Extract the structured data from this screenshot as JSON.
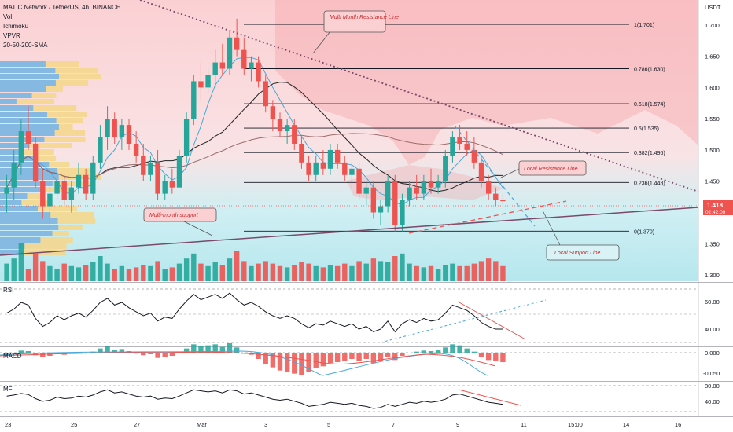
{
  "header": {
    "title": "MATIC Network / TetherUS, 4h, BINANCE",
    "indicators": [
      "Vol",
      "Ichimoku",
      "VPVR",
      "20-50-200-SMA"
    ]
  },
  "currency_label": "USDT",
  "price_axis": {
    "ticks": [
      "1.700",
      "1.650",
      "1.600",
      "1.550",
      "1.500",
      "1.450",
      "1.400",
      "1.350",
      "1.300"
    ]
  },
  "last_price": {
    "value": "1.418",
    "countdown": "02:42:09"
  },
  "fib_levels": [
    {
      "label": "1(1.701)",
      "price": 1.701
    },
    {
      "label": "0.786(1.630)",
      "price": 1.63
    },
    {
      "label": "0.618(1.574)",
      "price": 1.574
    },
    {
      "label": "0.5(1.535)",
      "price": 1.535
    },
    {
      "label": "0.382(1.496)",
      "price": 1.496
    },
    {
      "label": "0.236(1.448)",
      "price": 1.448
    },
    {
      "label": "0(1.370)",
      "price": 1.37
    }
  ],
  "annotations": {
    "multi_month_resistance": "Multi Month Resistance Line",
    "local_resistance": "Local Resistance Line",
    "multi_month_support": "Multi-month support",
    "local_support": "Local Support Line"
  },
  "panes": {
    "rsi": {
      "label": "RSI",
      "ticks": [
        "60.00",
        "40.00"
      ]
    },
    "macd": {
      "label": "MACD",
      "ticks": [
        "0.000",
        "-0.050"
      ]
    },
    "mfi": {
      "label": "MFI",
      "ticks": [
        "80.00",
        "40.00"
      ]
    }
  },
  "time_axis": {
    "ticks": [
      "23",
      "25",
      "27",
      "Mar",
      "3",
      "5",
      "7",
      "9",
      "11",
      "15:00",
      "14",
      "16"
    ]
  },
  "colors": {
    "up": "#26a69a",
    "down": "#ef5350",
    "resistance_cloud": "#f7a9ae",
    "support_bg": "#b3e5ec",
    "price_badge": "#ef5350"
  },
  "chart_data": {
    "type": "candlestick",
    "symbol": "MATIC Network / TetherUS",
    "interval": "4h",
    "ylim": [
      1.29,
      1.74
    ],
    "last_price": 1.418,
    "candles": [
      {
        "o": 1.43,
        "h": 1.46,
        "l": 1.4,
        "c": 1.44
      },
      {
        "o": 1.44,
        "h": 1.5,
        "l": 1.42,
        "c": 1.48
      },
      {
        "o": 1.48,
        "h": 1.55,
        "l": 1.46,
        "c": 1.53
      },
      {
        "o": 1.53,
        "h": 1.57,
        "l": 1.5,
        "c": 1.51
      },
      {
        "o": 1.51,
        "h": 1.52,
        "l": 1.44,
        "c": 1.45
      },
      {
        "o": 1.45,
        "h": 1.47,
        "l": 1.39,
        "c": 1.41
      },
      {
        "o": 1.41,
        "h": 1.45,
        "l": 1.38,
        "c": 1.43
      },
      {
        "o": 1.43,
        "h": 1.47,
        "l": 1.42,
        "c": 1.45
      },
      {
        "o": 1.45,
        "h": 1.46,
        "l": 1.41,
        "c": 1.42
      },
      {
        "o": 1.42,
        "h": 1.45,
        "l": 1.4,
        "c": 1.44
      },
      {
        "o": 1.44,
        "h": 1.48,
        "l": 1.43,
        "c": 1.46
      },
      {
        "o": 1.46,
        "h": 1.47,
        "l": 1.42,
        "c": 1.43
      },
      {
        "o": 1.43,
        "h": 1.49,
        "l": 1.42,
        "c": 1.48
      },
      {
        "o": 1.48,
        "h": 1.54,
        "l": 1.47,
        "c": 1.52
      },
      {
        "o": 1.52,
        "h": 1.57,
        "l": 1.5,
        "c": 1.55
      },
      {
        "o": 1.55,
        "h": 1.56,
        "l": 1.51,
        "c": 1.52
      },
      {
        "o": 1.52,
        "h": 1.55,
        "l": 1.5,
        "c": 1.54
      },
      {
        "o": 1.54,
        "h": 1.55,
        "l": 1.5,
        "c": 1.51
      },
      {
        "o": 1.51,
        "h": 1.53,
        "l": 1.48,
        "c": 1.49
      },
      {
        "o": 1.49,
        "h": 1.51,
        "l": 1.45,
        "c": 1.46
      },
      {
        "o": 1.46,
        "h": 1.49,
        "l": 1.45,
        "c": 1.48
      },
      {
        "o": 1.48,
        "h": 1.5,
        "l": 1.42,
        "c": 1.43
      },
      {
        "o": 1.43,
        "h": 1.46,
        "l": 1.42,
        "c": 1.45
      },
      {
        "o": 1.45,
        "h": 1.47,
        "l": 1.43,
        "c": 1.44
      },
      {
        "o": 1.44,
        "h": 1.5,
        "l": 1.44,
        "c": 1.49
      },
      {
        "o": 1.49,
        "h": 1.56,
        "l": 1.48,
        "c": 1.55
      },
      {
        "o": 1.55,
        "h": 1.62,
        "l": 1.54,
        "c": 1.61
      },
      {
        "o": 1.61,
        "h": 1.64,
        "l": 1.58,
        "c": 1.6
      },
      {
        "o": 1.6,
        "h": 1.63,
        "l": 1.59,
        "c": 1.62
      },
      {
        "o": 1.62,
        "h": 1.66,
        "l": 1.6,
        "c": 1.64
      },
      {
        "o": 1.64,
        "h": 1.67,
        "l": 1.62,
        "c": 1.63
      },
      {
        "o": 1.63,
        "h": 1.69,
        "l": 1.62,
        "c": 1.68
      },
      {
        "o": 1.68,
        "h": 1.71,
        "l": 1.65,
        "c": 1.66
      },
      {
        "o": 1.66,
        "h": 1.68,
        "l": 1.62,
        "c": 1.63
      },
      {
        "o": 1.63,
        "h": 1.65,
        "l": 1.61,
        "c": 1.64
      },
      {
        "o": 1.64,
        "h": 1.65,
        "l": 1.6,
        "c": 1.61
      },
      {
        "o": 1.61,
        "h": 1.62,
        "l": 1.56,
        "c": 1.57
      },
      {
        "o": 1.57,
        "h": 1.58,
        "l": 1.53,
        "c": 1.55
      },
      {
        "o": 1.55,
        "h": 1.56,
        "l": 1.52,
        "c": 1.53
      },
      {
        "o": 1.53,
        "h": 1.55,
        "l": 1.51,
        "c": 1.54
      },
      {
        "o": 1.54,
        "h": 1.55,
        "l": 1.5,
        "c": 1.51
      },
      {
        "o": 1.51,
        "h": 1.52,
        "l": 1.47,
        "c": 1.48
      },
      {
        "o": 1.48,
        "h": 1.49,
        "l": 1.45,
        "c": 1.46
      },
      {
        "o": 1.46,
        "h": 1.49,
        "l": 1.45,
        "c": 1.48
      },
      {
        "o": 1.48,
        "h": 1.5,
        "l": 1.46,
        "c": 1.47
      },
      {
        "o": 1.47,
        "h": 1.51,
        "l": 1.46,
        "c": 1.5
      },
      {
        "o": 1.5,
        "h": 1.51,
        "l": 1.47,
        "c": 1.48
      },
      {
        "o": 1.48,
        "h": 1.49,
        "l": 1.45,
        "c": 1.46
      },
      {
        "o": 1.46,
        "h": 1.48,
        "l": 1.44,
        "c": 1.47
      },
      {
        "o": 1.47,
        "h": 1.48,
        "l": 1.42,
        "c": 1.43
      },
      {
        "o": 1.43,
        "h": 1.45,
        "l": 1.41,
        "c": 1.44
      },
      {
        "o": 1.44,
        "h": 1.45,
        "l": 1.39,
        "c": 1.4
      },
      {
        "o": 1.4,
        "h": 1.42,
        "l": 1.38,
        "c": 1.41
      },
      {
        "o": 1.41,
        "h": 1.46,
        "l": 1.4,
        "c": 1.45
      },
      {
        "o": 1.45,
        "h": 1.46,
        "l": 1.37,
        "c": 1.38
      },
      {
        "o": 1.38,
        "h": 1.43,
        "l": 1.37,
        "c": 1.42
      },
      {
        "o": 1.42,
        "h": 1.45,
        "l": 1.41,
        "c": 1.44
      },
      {
        "o": 1.44,
        "h": 1.46,
        "l": 1.42,
        "c": 1.43
      },
      {
        "o": 1.43,
        "h": 1.46,
        "l": 1.42,
        "c": 1.45
      },
      {
        "o": 1.45,
        "h": 1.47,
        "l": 1.43,
        "c": 1.44
      },
      {
        "o": 1.44,
        "h": 1.46,
        "l": 1.43,
        "c": 1.45
      },
      {
        "o": 1.45,
        "h": 1.5,
        "l": 1.44,
        "c": 1.49
      },
      {
        "o": 1.49,
        "h": 1.53,
        "l": 1.48,
        "c": 1.52
      },
      {
        "o": 1.52,
        "h": 1.54,
        "l": 1.5,
        "c": 1.51
      },
      {
        "o": 1.51,
        "h": 1.53,
        "l": 1.49,
        "c": 1.5
      },
      {
        "o": 1.5,
        "h": 1.52,
        "l": 1.47,
        "c": 1.48
      },
      {
        "o": 1.48,
        "h": 1.49,
        "l": 1.44,
        "c": 1.45
      },
      {
        "o": 1.45,
        "h": 1.46,
        "l": 1.42,
        "c": 1.43
      },
      {
        "o": 1.43,
        "h": 1.44,
        "l": 1.41,
        "c": 1.42
      },
      {
        "o": 1.42,
        "h": 1.43,
        "l": 1.41,
        "c": 1.418
      }
    ],
    "volume": [
      14,
      18,
      30,
      10,
      22,
      16,
      12,
      10,
      14,
      12,
      11,
      13,
      15,
      20,
      14,
      10,
      12,
      10,
      11,
      13,
      12,
      16,
      10,
      11,
      14,
      18,
      22,
      14,
      12,
      15,
      13,
      18,
      24,
      16,
      12,
      14,
      16,
      14,
      12,
      11,
      13,
      15,
      14,
      12,
      11,
      13,
      12,
      14,
      12,
      16,
      14,
      18,
      16,
      15,
      20,
      22,
      14,
      12,
      11,
      12,
      10,
      13,
      14,
      12,
      12,
      14,
      16,
      18,
      16,
      12
    ],
    "rsi": [
      52,
      55,
      60,
      58,
      48,
      42,
      45,
      50,
      47,
      50,
      52,
      49,
      54,
      60,
      63,
      58,
      60,
      56,
      53,
      50,
      52,
      46,
      49,
      48,
      55,
      61,
      66,
      62,
      64,
      66,
      63,
      67,
      62,
      58,
      60,
      57,
      53,
      50,
      48,
      50,
      48,
      44,
      41,
      44,
      43,
      46,
      44,
      42,
      44,
      40,
      42,
      38,
      40,
      46,
      38,
      44,
      47,
      45,
      48,
      46,
      47,
      52,
      58,
      56,
      54,
      50,
      45,
      42,
      40,
      40
    ],
    "mfi": [
      60,
      62,
      65,
      63,
      55,
      50,
      52,
      58,
      55,
      56,
      60,
      58,
      62,
      68,
      72,
      66,
      68,
      64,
      60,
      58,
      60,
      54,
      56,
      55,
      60,
      66,
      72,
      70,
      68,
      70,
      66,
      72,
      70,
      64,
      66,
      62,
      58,
      54,
      52,
      54,
      50,
      46,
      40,
      42,
      44,
      48,
      46,
      44,
      46,
      42,
      40,
      36,
      38,
      44,
      40,
      44,
      48,
      46,
      50,
      48,
      50,
      54,
      62,
      64,
      60,
      56,
      52,
      48,
      46,
      44
    ],
    "macd_hist": [
      -0.004,
      -0.002,
      0.004,
      0.003,
      -0.005,
      -0.009,
      -0.006,
      -0.003,
      -0.004,
      -0.002,
      0.001,
      -0.001,
      0.002,
      0.008,
      0.012,
      0.006,
      0.007,
      0.003,
      -0.002,
      -0.005,
      -0.003,
      -0.01,
      -0.008,
      -0.006,
      0.0,
      0.008,
      0.016,
      0.012,
      0.014,
      0.016,
      0.011,
      0.018,
      0.01,
      -0.002,
      -0.004,
      -0.012,
      -0.022,
      -0.028,
      -0.034,
      -0.036,
      -0.04,
      -0.042,
      -0.036,
      -0.03,
      -0.026,
      -0.02,
      -0.018,
      -0.016,
      -0.012,
      -0.016,
      -0.012,
      -0.02,
      -0.016,
      -0.008,
      -0.014,
      -0.006,
      0.0,
      0.002,
      0.004,
      0.003,
      0.005,
      0.01,
      0.016,
      0.014,
      0.008,
      0.002,
      -0.008,
      -0.014,
      -0.016,
      -0.018
    ]
  }
}
